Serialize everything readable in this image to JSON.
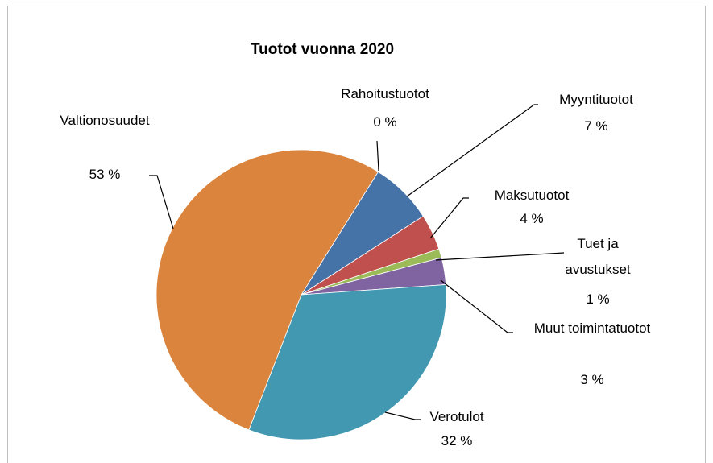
{
  "chart_data": {
    "type": "pie",
    "title": "Tuotot vuonna 2020",
    "categories": [
      "Rahoitustuotot",
      "Myyntituotot",
      "Maksutuotot",
      "Tuet ja avustukset",
      "Muut toimintatuotot",
      "Verotulot",
      "Valtionosuudet"
    ],
    "values": [
      0,
      7,
      4,
      1,
      3,
      32,
      53
    ],
    "value_labels": [
      "0 %",
      "7 %",
      "4 %",
      "1 %",
      "3 %",
      "32 %",
      "53 %"
    ],
    "colors": [
      "#a5a5a5",
      "#4573a8",
      "#c0504d",
      "#9bbb59",
      "#8064a2",
      "#4198b0",
      "#db843d"
    ]
  }
}
